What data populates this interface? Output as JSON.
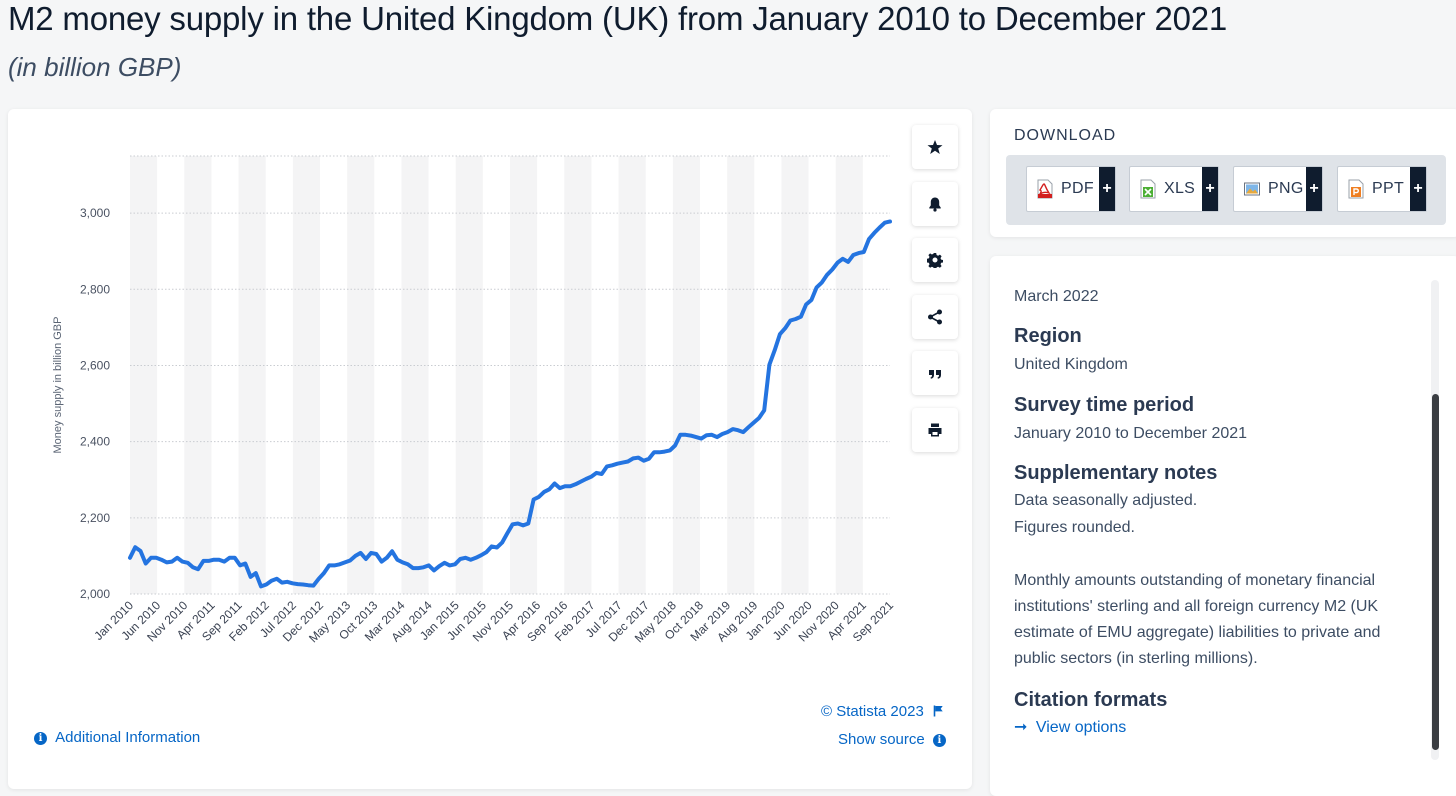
{
  "page": {
    "title": "M2 money supply in the United Kingdom (UK) from January 2010 to December 2021",
    "subtitle": "(in billion GBP)"
  },
  "chart_data": {
    "type": "line",
    "title": "",
    "xlabel": "",
    "ylabel": "Money supply in billion GBP",
    "ylim": [
      2000,
      3150
    ],
    "yticks": [
      2000,
      2200,
      2400,
      2600,
      2800,
      3000
    ],
    "ytick_labels": [
      "2,000",
      "2,200",
      "2,400",
      "2,600",
      "2,800",
      "3,000"
    ],
    "grid": true,
    "x_tick_labels": [
      "Jan 2010",
      "Jun 2010",
      "Nov 2010",
      "Apr 2011",
      "Sep 2011",
      "Feb 2012",
      "Jul 2012",
      "Dec 2012",
      "May 2013",
      "Oct 2013",
      "Mar 2014",
      "Aug 2014",
      "Jan 2015",
      "Jun 2015",
      "Nov 2015",
      "Apr 2016",
      "Sep 2016",
      "Feb 2017",
      "Jul 2017",
      "Dec 2017",
      "May 2018",
      "Oct 2018",
      "Mar 2019",
      "Aug 2019",
      "Jan 2020",
      "Jun 2020",
      "Nov 2020",
      "Apr 2021",
      "Sep 2021"
    ],
    "series_color": "#2474e0",
    "series": [
      {
        "values": [
          2095,
          2123,
          2113,
          2080,
          2095,
          2095,
          2090,
          2083,
          2085,
          2095,
          2085,
          2082,
          2070,
          2065,
          2087,
          2087,
          2090,
          2090,
          2085,
          2095,
          2095,
          2075,
          2080,
          2045,
          2055,
          2020,
          2025,
          2035,
          2040,
          2030,
          2032,
          2028,
          2026,
          2025,
          2023,
          2022,
          2040,
          2055,
          2075,
          2075,
          2078,
          2083,
          2088,
          2100,
          2108,
          2092,
          2108,
          2105,
          2085,
          2095,
          2112,
          2090,
          2083,
          2078,
          2068,
          2068,
          2070,
          2075,
          2062,
          2073,
          2082,
          2075,
          2078,
          2092,
          2095,
          2090,
          2095,
          2102,
          2110,
          2125,
          2122,
          2135,
          2160,
          2183,
          2185,
          2180,
          2185,
          2248,
          2255,
          2268,
          2275,
          2290,
          2278,
          2283,
          2283,
          2288,
          2295,
          2302,
          2308,
          2318,
          2315,
          2335,
          2338,
          2342,
          2345,
          2348,
          2356,
          2358,
          2350,
          2355,
          2372,
          2372,
          2374,
          2377,
          2390,
          2418,
          2418,
          2416,
          2412,
          2408,
          2417,
          2418,
          2412,
          2420,
          2425,
          2433,
          2430,
          2425,
          2438,
          2450,
          2462,
          2482,
          2602,
          2640,
          2682,
          2698,
          2718,
          2722,
          2728,
          2760,
          2772,
          2805,
          2818,
          2838,
          2852,
          2870,
          2880,
          2872,
          2890,
          2895,
          2898,
          2932,
          2948,
          2962,
          2975,
          2978
        ]
      }
    ]
  },
  "chart_footer": {
    "copyright": "© Statista 2023",
    "additional_info": "Additional Information",
    "show_source": "Show source"
  },
  "toolbar": {
    "icons": [
      "star-icon",
      "bell-icon",
      "gear-icon",
      "share-icon",
      "quote-icon",
      "print-icon"
    ]
  },
  "download": {
    "label": "DOWNLOAD",
    "formats": [
      "PDF",
      "XLS",
      "PNG",
      "PPT"
    ],
    "plus": "+"
  },
  "meta": {
    "release": "March 2022",
    "region_label": "Region",
    "region_value": "United Kingdom",
    "period_label": "Survey time period",
    "period_value": "January 2010 to December 2021",
    "notes_label": "Supplementary notes",
    "notes_line1": "Data seasonally adjusted.",
    "notes_line2": "Figures rounded.",
    "notes_paragraph": "Monthly amounts outstanding of monetary financial institutions' sterling and all foreign currency M2 (UK estimate of EMU aggregate) liabilities to private and public sectors (in sterling millions).",
    "citation_label": "Citation formats",
    "view_options": "View options",
    "view_arrow": "➞"
  },
  "colors": {
    "accent": "#0666c6",
    "line": "#2474e0",
    "dark": "#0f1c2e"
  }
}
